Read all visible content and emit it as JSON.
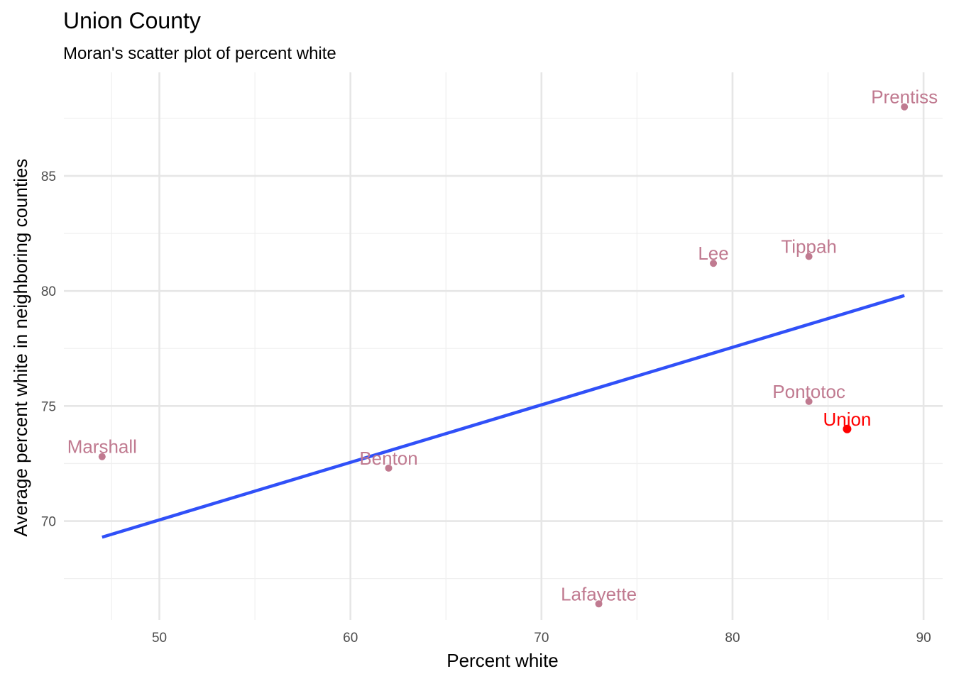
{
  "chart_data": {
    "type": "scatter",
    "title": "Union County",
    "subtitle": "Moran's scatter plot of percent white",
    "xlabel": "Percent white",
    "ylabel": "Average percent white in neighboring counties",
    "xlim": [
      45,
      91
    ],
    "ylim": [
      65.7,
      89.5
    ],
    "x_ticks": [
      50,
      60,
      70,
      80,
      90
    ],
    "y_ticks": [
      70,
      75,
      80,
      85
    ],
    "grid": true,
    "points": [
      {
        "label": "Prentiss",
        "x": 89,
        "y": 88.0,
        "highlight": false
      },
      {
        "label": "Lee",
        "x": 79,
        "y": 81.2,
        "highlight": false
      },
      {
        "label": "Tippah",
        "x": 84,
        "y": 81.5,
        "highlight": false
      },
      {
        "label": "Pontotoc",
        "x": 84,
        "y": 75.2,
        "highlight": false
      },
      {
        "label": "Union",
        "x": 86,
        "y": 74.0,
        "highlight": true
      },
      {
        "label": "Marshall",
        "x": 47,
        "y": 72.8,
        "highlight": false
      },
      {
        "label": "Benton",
        "x": 62,
        "y": 72.3,
        "highlight": false
      },
      {
        "label": "Lafayette",
        "x": 73,
        "y": 66.4,
        "highlight": false
      }
    ],
    "trend_line": {
      "x": [
        47,
        89
      ],
      "y": [
        69.3,
        79.8
      ]
    },
    "colors": {
      "point": "#c07a90",
      "highlight": "#ff0000",
      "trend_line": "#3050f8",
      "grid_major": "#e6e6e6",
      "grid_minor": "#f0f0f0"
    }
  }
}
